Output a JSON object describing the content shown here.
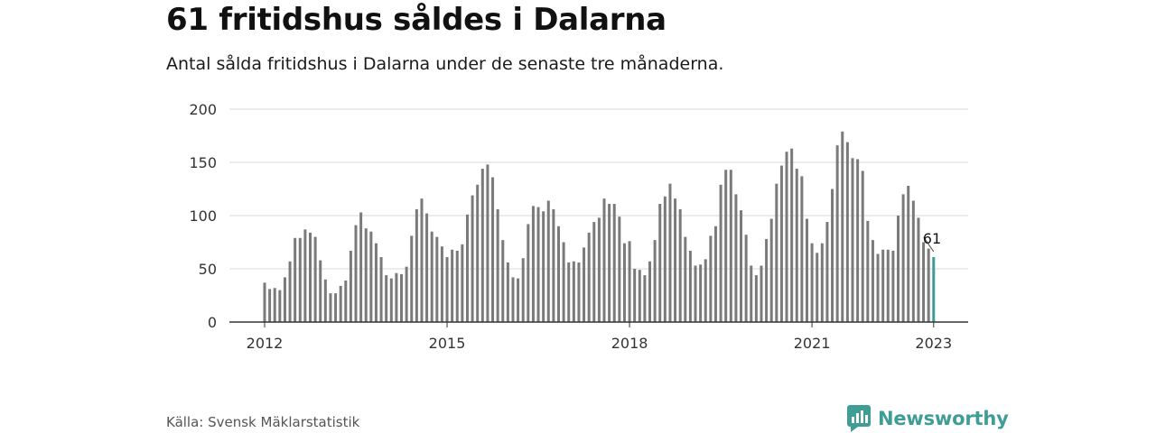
{
  "title": "61 fritidshus såldes i Dalarna",
  "subtitle": "Antal sålda fritidshus i Dalarna under de senaste tre månaderna.",
  "source": "Källa: Svensk Mäklarstatistik",
  "brand": {
    "name": "Newsworthy",
    "icon": "newsworthy-logo-icon"
  },
  "colors": {
    "bars": "#7a7a7a",
    "highlight": "#3f9d96",
    "grid": "#d9d9d9",
    "axis": "#333333",
    "brand": "#3f9d96"
  },
  "chart_data": {
    "type": "bar",
    "x_start": "2012-01",
    "x_end": "2023-01",
    "frequency": "monthly",
    "values": [
      37,
      31,
      32,
      30,
      42,
      57,
      79,
      79,
      87,
      84,
      80,
      58,
      40,
      27,
      27,
      34,
      39,
      67,
      91,
      103,
      88,
      85,
      74,
      61,
      44,
      41,
      46,
      45,
      52,
      81,
      106,
      116,
      102,
      85,
      80,
      71,
      61,
      68,
      67,
      73,
      101,
      119,
      129,
      144,
      148,
      136,
      106,
      77,
      56,
      42,
      41,
      60,
      92,
      109,
      108,
      104,
      114,
      106,
      90,
      75,
      56,
      57,
      56,
      70,
      84,
      94,
      98,
      116,
      111,
      111,
      99,
      74,
      76,
      50,
      49,
      44,
      57,
      77,
      111,
      118,
      130,
      116,
      106,
      80,
      67,
      53,
      54,
      59,
      81,
      90,
      129,
      143,
      143,
      120,
      105,
      82,
      53,
      44,
      53,
      78,
      97,
      130,
      147,
      160,
      163,
      144,
      137,
      97,
      74,
      65,
      74,
      94,
      125,
      166,
      179,
      169,
      154,
      153,
      142,
      95,
      77,
      64,
      68,
      68,
      67,
      100,
      120,
      128,
      114,
      98,
      75,
      69,
      61
    ],
    "highlight_last": true,
    "annotation": {
      "label": "61"
    },
    "x_ticks": [
      "2012",
      "2015",
      "2018",
      "2021",
      "2023"
    ],
    "y_ticks": [
      0,
      50,
      100,
      150,
      200
    ],
    "ylim": [
      0,
      200
    ],
    "grid": true,
    "xlabel": "",
    "ylabel": ""
  }
}
